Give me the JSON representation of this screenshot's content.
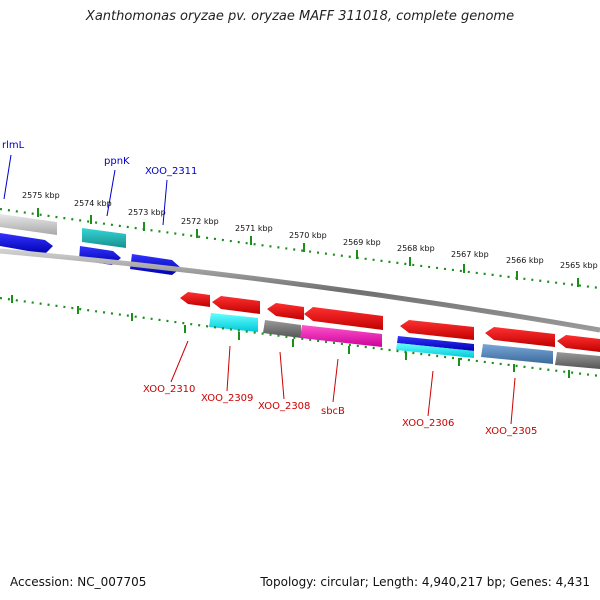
{
  "title": "Xanthomonas oryzae pv. oryzae MAFF 311018, complete genome",
  "footer": {
    "accession": "Accession: NC_007705",
    "topology": "Topology: circular; Length: 4,940,217 bp; Genes: 4,431"
  },
  "colors": {
    "forward_label": "#0000cc",
    "reverse_label": "#cc0000",
    "tick": "#1a8f1a",
    "backbone": "#808080"
  },
  "scale_labels": [
    "2575 kbp",
    "2574 kbp",
    "2573 kbp",
    "2572 kbp",
    "2571 kbp",
    "2570 kbp",
    "2569 kbp",
    "2568 kbp",
    "2567 kbp",
    "2566 kbp",
    "2565 kbp"
  ],
  "forward_gene_labels": [
    "rlmL",
    "ppnK",
    "XOO_2311"
  ],
  "reverse_gene_labels": [
    "XOO_2310",
    "XOO_2309",
    "XOO_2308",
    "sbcB",
    "XOO_2306",
    "XOO_2305"
  ]
}
